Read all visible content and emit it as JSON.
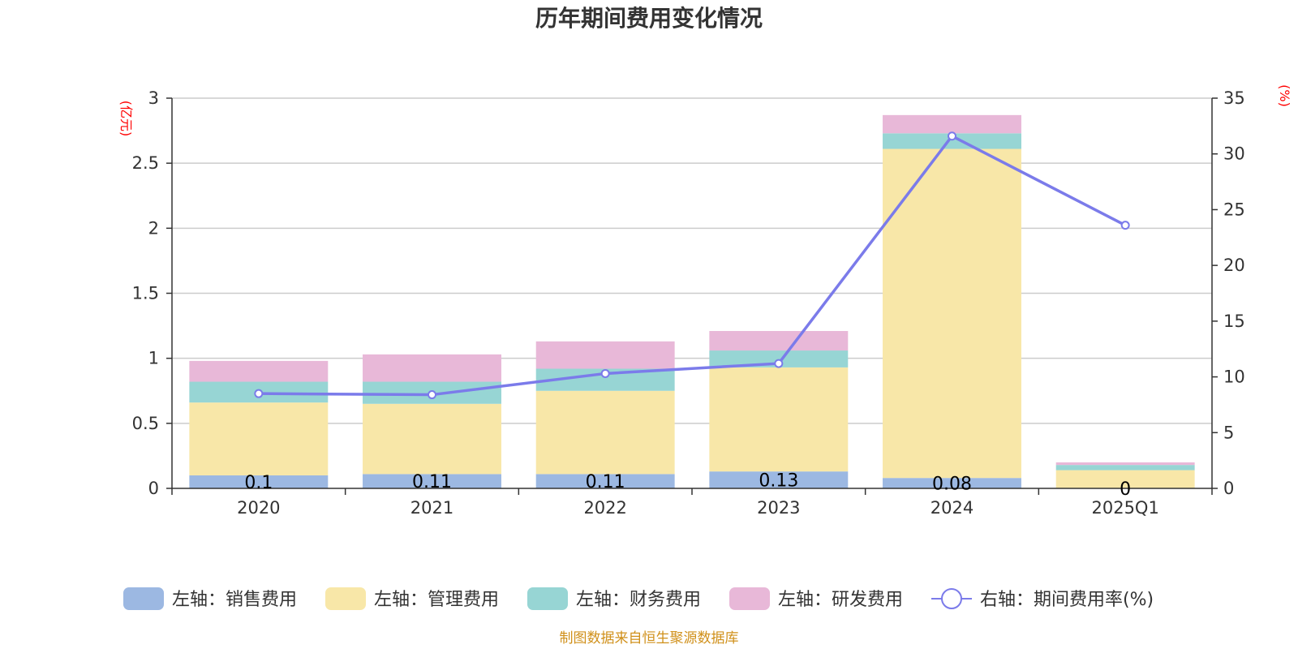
{
  "chart_data": {
    "type": "bar",
    "stacked": true,
    "title": "历年期间费用变化情况",
    "categories": [
      "2020",
      "2021",
      "2022",
      "2023",
      "2024",
      "2025Q1"
    ],
    "left_axis": {
      "unit": "(亿元)",
      "ylim": [
        0,
        3
      ],
      "ticks": [
        "0",
        "0.5",
        "1",
        "1.5",
        "2",
        "2.5",
        "3"
      ],
      "tick_values": [
        0,
        0.5,
        1,
        1.5,
        2,
        2.5,
        3
      ]
    },
    "right_axis": {
      "unit": "(%)",
      "ylim": [
        0,
        35
      ],
      "ticks": [
        "0",
        "5",
        "10",
        "15",
        "20",
        "25",
        "30",
        "35"
      ],
      "tick_values": [
        0,
        5,
        10,
        15,
        20,
        25,
        30,
        35
      ]
    },
    "series": [
      {
        "name": "左轴：销售费用",
        "color": "#9cb8e2",
        "values": [
          0.1,
          0.11,
          0.11,
          0.13,
          0.08,
          0.0
        ],
        "labels": [
          "0.1",
          "0.11",
          "0.11",
          "0.13",
          "0.08",
          "0"
        ]
      },
      {
        "name": "左轴：管理费用",
        "color": "#f8e7a8",
        "values": [
          0.56,
          0.54,
          0.64,
          0.8,
          2.53,
          0.14
        ]
      },
      {
        "name": "左轴：财务费用",
        "color": "#97d5d4",
        "values": [
          0.16,
          0.17,
          0.17,
          0.13,
          0.12,
          0.04
        ]
      },
      {
        "name": "左轴：研发费用",
        "color": "#e8b8d8",
        "values": [
          0.16,
          0.21,
          0.21,
          0.15,
          0.14,
          0.02
        ]
      }
    ],
    "line_series": {
      "name": "右轴：期间费用率(%)",
      "color": "#7b7bea",
      "values": [
        8.5,
        8.4,
        10.3,
        11.2,
        31.6,
        23.6
      ]
    },
    "grid": true,
    "legend_position": "bottom"
  },
  "source_text": "制图数据来自恒生聚源数据库"
}
